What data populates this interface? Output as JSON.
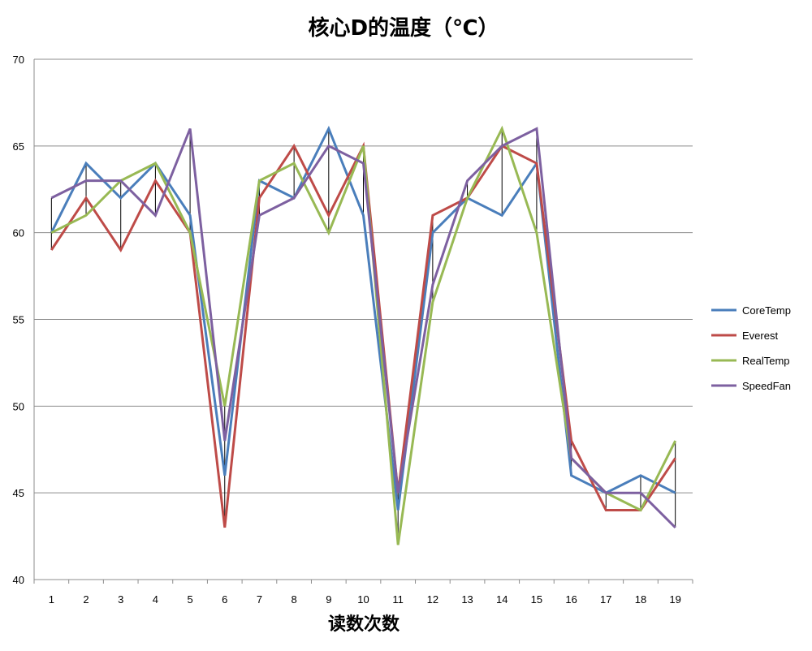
{
  "chart_data": {
    "type": "line",
    "title": "核心D的温度（℃）",
    "xlabel": "读数次数",
    "ylabel": "",
    "ylim": [
      40,
      70
    ],
    "yticks": [
      40,
      45,
      50,
      55,
      60,
      65,
      70
    ],
    "categories": [
      "1",
      "2",
      "3",
      "4",
      "5",
      "6",
      "7",
      "8",
      "9",
      "10",
      "11",
      "12",
      "13",
      "14",
      "15",
      "16",
      "17",
      "18",
      "19"
    ],
    "grid": "horizontal",
    "legend_position": "right",
    "hi_lo_lines": true,
    "series": [
      {
        "name": "CoreTemp",
        "color": "#4a7ebb",
        "values": [
          60,
          64,
          62,
          64,
          61,
          46,
          63,
          62,
          66,
          61,
          44,
          60,
          62,
          61,
          64,
          46,
          45,
          46,
          45
        ]
      },
      {
        "name": "Everest",
        "color": "#be4b48",
        "values": [
          59,
          62,
          59,
          63,
          60,
          43,
          62,
          65,
          61,
          65,
          45,
          61,
          62,
          65,
          64,
          48,
          44,
          44,
          47
        ]
      },
      {
        "name": "RealTemp",
        "color": "#98b954",
        "values": [
          60,
          61,
          63,
          64,
          60,
          50,
          63,
          64,
          60,
          65,
          42,
          56,
          62,
          66,
          60,
          47,
          45,
          44,
          48
        ]
      },
      {
        "name": "SpeedFan",
        "color": "#7d60a0",
        "values": [
          62,
          63,
          63,
          61,
          66,
          48,
          61,
          62,
          65,
          64,
          45,
          57,
          63,
          65,
          66,
          47,
          45,
          45,
          43
        ]
      }
    ]
  }
}
